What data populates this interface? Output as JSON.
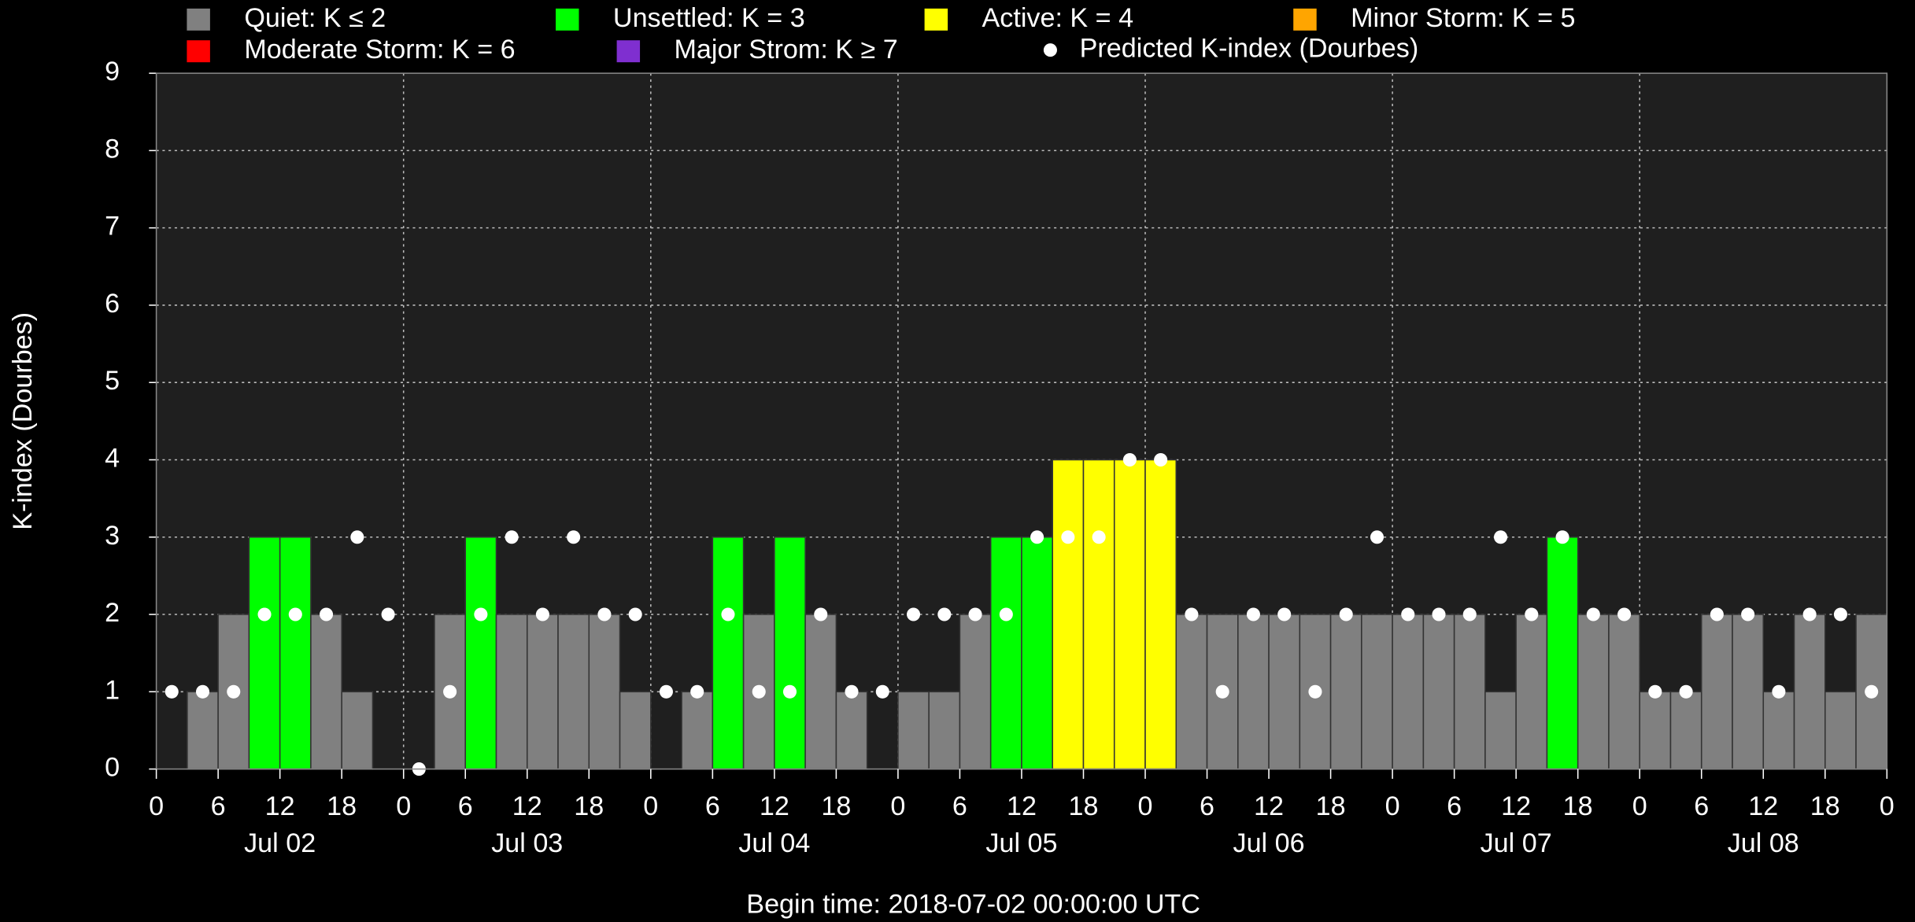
{
  "chart_data": {
    "type": "bar",
    "y_label": "K-index (Dourbes)",
    "footer": "Begin time: 2018-07-02 00:00:00 UTC",
    "legend": [
      {
        "label": "Quiet: K ≤ 2",
        "color": "#808080"
      },
      {
        "label": "Unsettled: K = 3",
        "color": "#00ff00"
      },
      {
        "label": "Active: K = 4",
        "color": "#ffff00"
      },
      {
        "label": "Minor Storm: K = 5",
        "color": "#ffa500"
      },
      {
        "label": "Moderate Storm: K = 6",
        "color": "#ff0000"
      },
      {
        "label": "Major Strom: K ≥ 7",
        "color": "#7f2fd0"
      }
    ],
    "x": [
      1.5,
      4.5,
      7.5,
      10.5,
      13.5,
      16.5,
      19.5,
      22.5,
      25.5,
      28.5,
      31.5,
      34.5,
      37.5,
      40.5,
      43.5,
      46.5,
      49.5,
      52.5,
      55.5,
      58.5,
      61.5,
      64.5,
      67.5,
      70.5,
      73.5,
      76.5,
      79.5,
      82.5,
      85.5,
      88.5,
      91.5,
      94.5,
      97.5,
      100.5,
      103.5,
      106.5,
      109.5,
      112.5,
      115.5,
      118.5,
      121.5,
      124.5,
      127.5,
      130.5,
      133.5,
      136.5,
      139.5,
      142.5,
      145.5,
      148.5,
      151.5,
      154.5,
      157.5,
      160.5,
      163.5,
      166.5
    ],
    "series": [
      {
        "type": "bar",
        "values": [
          0,
          1,
          2,
          3,
          3,
          2,
          1,
          0,
          0,
          2,
          3,
          2,
          2,
          2,
          2,
          1,
          0,
          1,
          3,
          2,
          3,
          2,
          1,
          0,
          1,
          1,
          2,
          3,
          3,
          4,
          4,
          4,
          4,
          2,
          2,
          2,
          2,
          2,
          2,
          2,
          2,
          2,
          2,
          1,
          2,
          3,
          2,
          2,
          1,
          1,
          2,
          2,
          1,
          2,
          1,
          2
        ],
        "colors": [
          "#808080",
          "#808080",
          "#808080",
          "#00ff00",
          "#00ff00",
          "#808080",
          "#808080",
          "#808080",
          "#808080",
          "#808080",
          "#00ff00",
          "#808080",
          "#808080",
          "#808080",
          "#808080",
          "#808080",
          "#808080",
          "#808080",
          "#00ff00",
          "#808080",
          "#00ff00",
          "#808080",
          "#808080",
          "#808080",
          "#808080",
          "#808080",
          "#808080",
          "#00ff00",
          "#00ff00",
          "#ffff00",
          "#ffff00",
          "#ffff00",
          "#ffff00",
          "#808080",
          "#808080",
          "#808080",
          "#808080",
          "#808080",
          "#808080",
          "#808080",
          "#808080",
          "#808080",
          "#808080",
          "#808080",
          "#808080",
          "#00ff00",
          "#808080",
          "#808080",
          "#808080",
          "#808080",
          "#808080",
          "#808080",
          "#808080",
          "#808080",
          "#808080",
          "#808080"
        ]
      },
      {
        "type": "scatter",
        "name": "Predicted K-index (Dourbes)",
        "color": "#ffffff",
        "values": [
          1,
          1,
          1,
          2,
          2,
          2,
          3,
          2,
          0,
          1,
          2,
          3,
          2,
          3,
          2,
          2,
          1,
          1,
          2,
          1,
          1,
          2,
          1,
          1,
          2,
          2,
          2,
          2,
          3,
          3,
          3,
          4,
          4,
          2,
          1,
          2,
          2,
          1,
          2,
          3,
          2,
          2,
          2,
          3,
          2,
          3,
          2,
          2,
          1,
          1,
          2,
          2,
          1,
          2,
          2,
          1
        ]
      }
    ],
    "xlim": [
      0,
      168
    ],
    "xticks": [
      0,
      6,
      12,
      18,
      {
        "value": 24,
        "label": "0"
      },
      {
        "value": 30,
        "label": "6"
      },
      {
        "value": 36,
        "label": "12"
      },
      {
        "value": 42,
        "label": "18"
      },
      {
        "value": 48,
        "label": "0"
      },
      {
        "value": 54,
        "label": "6"
      },
      {
        "value": 60,
        "label": "12"
      },
      {
        "value": 66,
        "label": "18"
      },
      {
        "value": 72,
        "label": "0"
      },
      {
        "value": 78,
        "label": "6"
      },
      {
        "value": 84,
        "label": "12"
      },
      {
        "value": 90,
        "label": "18"
      },
      {
        "value": 96,
        "label": "0"
      },
      {
        "value": 102,
        "label": "6"
      },
      {
        "value": 108,
        "label": "12"
      },
      {
        "value": 114,
        "label": "18"
      },
      {
        "value": 120,
        "label": "0"
      },
      {
        "value": 126,
        "label": "6"
      },
      {
        "value": 132,
        "label": "12"
      },
      {
        "value": 138,
        "label": "18"
      },
      {
        "value": 144,
        "label": "0"
      },
      {
        "value": 150,
        "label": "6"
      },
      {
        "value": 156,
        "label": "12"
      },
      {
        "value": 162,
        "label": "18"
      },
      {
        "value": 168,
        "label": "0"
      }
    ],
    "day_labels": [
      {
        "value": 12,
        "label": "Jul 02"
      },
      {
        "value": 36,
        "label": "Jul 03"
      },
      {
        "value": 60,
        "label": "Jul 04"
      },
      {
        "value": 84,
        "label": "Jul 05"
      },
      {
        "value": 108,
        "label": "Jul 06"
      },
      {
        "value": 132,
        "label": "Jul 07"
      },
      {
        "value": 156,
        "label": "Jul 08"
      }
    ],
    "day_grid": [
      24,
      48,
      72,
      96,
      120,
      144
    ],
    "ylim": [
      0,
      9
    ],
    "yticks": [
      0,
      1,
      2,
      3,
      4,
      5,
      6,
      7,
      8,
      9
    ],
    "grid": true
  }
}
